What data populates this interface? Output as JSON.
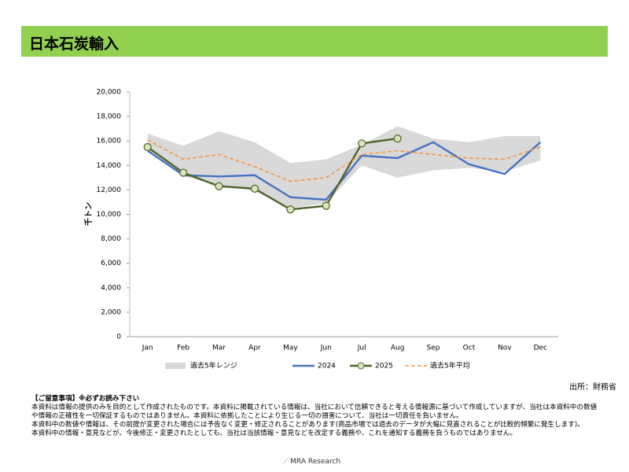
{
  "header": {
    "title": "日本石炭輸入"
  },
  "chart_data": {
    "type": "line",
    "y_label": "千トン",
    "categories": [
      "Jan",
      "Feb",
      "Mar",
      "Apr",
      "May",
      "Jun",
      "Jul",
      "Aug",
      "Sep",
      "Oct",
      "Nov",
      "Dec"
    ],
    "ylim": [
      0,
      20000
    ],
    "yticks": [
      0,
      {
        "value": 2000,
        "label": "2,000"
      },
      {
        "value": 4000,
        "label": "4,000"
      },
      {
        "value": 6000,
        "label": "6,000"
      },
      {
        "value": 8000,
        "label": "8,000"
      },
      {
        "value": 10000,
        "label": "10,000"
      },
      {
        "value": 12000,
        "label": "12,000"
      },
      {
        "value": 14000,
        "label": "14,000"
      },
      {
        "value": 16000,
        "label": "16,000"
      },
      {
        "value": 18000,
        "label": "18,000"
      },
      {
        "value": 20000,
        "label": "20,000"
      }
    ],
    "series": [
      {
        "name": "過去5年レンジ",
        "type": "range",
        "color": "#d9d9d9",
        "low": [
          15200,
          13100,
          12400,
          11900,
          10500,
          10900,
          14000,
          13000,
          13600,
          13800,
          13500,
          14400
        ],
        "high": [
          16600,
          15600,
          16800,
          15900,
          14200,
          14500,
          15700,
          17200,
          16200,
          15900,
          16400,
          16400
        ]
      },
      {
        "name": "2024",
        "color": "#4472c4",
        "values": [
          15200,
          13200,
          13100,
          13200,
          11400,
          11200,
          14800,
          14600,
          15900,
          14100,
          13300,
          15900
        ]
      },
      {
        "name": "2025",
        "color": "#4f6228",
        "markers": true,
        "values": [
          15500,
          13400,
          12300,
          12100,
          10400,
          10700,
          15800,
          16200,
          null,
          null,
          null,
          null
        ]
      },
      {
        "name": "過去5年平均",
        "color": "#f79646",
        "dashed": true,
        "values": [
          16100,
          14500,
          14900,
          13900,
          12700,
          13000,
          14900,
          15200,
          14900,
          14600,
          14500,
          15500
        ]
      }
    ],
    "source": "出所：財務省"
  },
  "notes": {
    "heading": "【ご留意事項】※必ずお読み下さい",
    "lines": [
      "本資料は情報の提供のみを目的として作成されたものです。本資料に掲載されている情報は、当社において信頼できると考える情報源に基づいて作成していますが、当社は本資料中の数値や情報の正確性を一切保証するものではありません。本資料に依拠したことにより生じる一切の損害について、当社は一切責任を負いません。",
      "本資料中の数値や情報は、その前提が変更された場合には予告なく変更・修正されることがあります(商品市場では過去のデータが大幅に見直されることが比較的頻繁に発生します)。",
      "本資料中の情報・意見などが、今後修正・変更されたとしても、当社は当該情報・意見などを改定する義務や、これを通知する義務を負うものではありません。"
    ]
  },
  "footer": {
    "logo": "MRA Research"
  }
}
